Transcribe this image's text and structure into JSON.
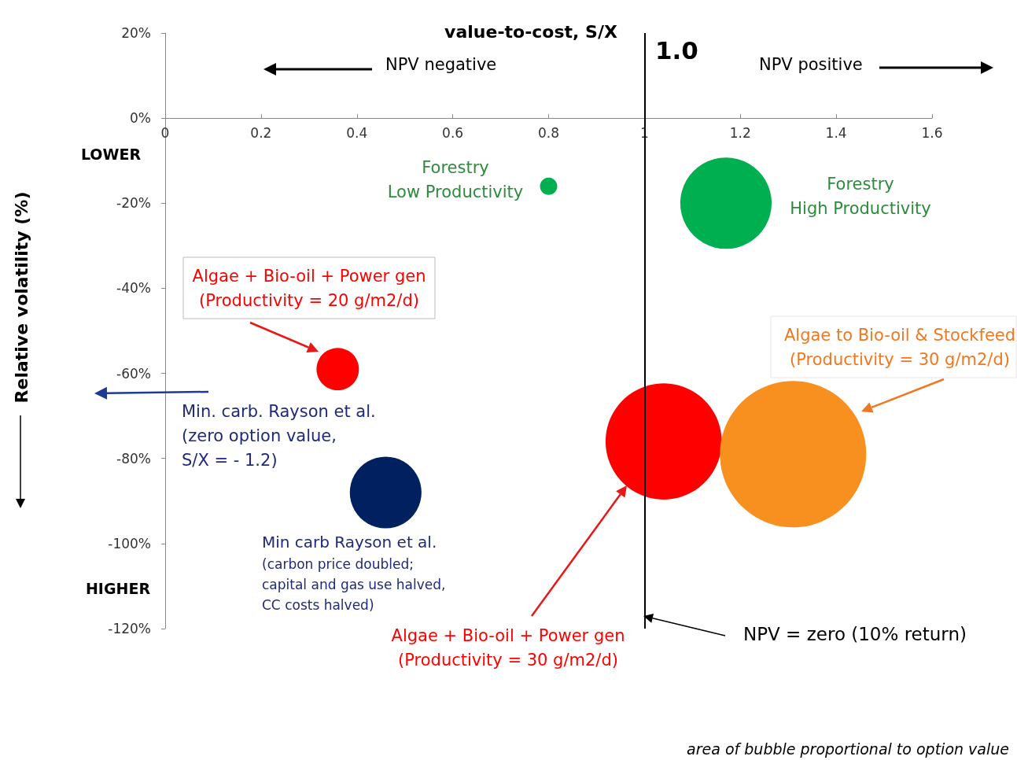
{
  "chart_data": {
    "type": "bubble",
    "xlabel": "value-to-cost, S/X",
    "ylabel": "Relative volatility (%)",
    "x": [
      0.8,
      1.17,
      0.36,
      0.46,
      1.04,
      1.31
    ],
    "values": [
      -16,
      -20,
      -59,
      -88,
      -76,
      -79
    ],
    "sizes": [
      0.014,
      0.39,
      0.084,
      0.24,
      0.63,
      1
    ],
    "colors": [
      "#00b050",
      "#00b050",
      "#ff0000",
      "#002060",
      "#ff0000",
      "#f7901e"
    ],
    "xlim": [
      0,
      1.6
    ],
    "xticks": [
      0,
      0.2,
      0.4,
      0.6,
      0.8,
      1,
      1.2,
      1.4,
      1.6
    ],
    "ylim": [
      -120,
      20
    ],
    "yticks": [
      {
        "value": 20,
        "label": "20%"
      },
      {
        "value": 0,
        "label": "0%"
      },
      {
        "value": -20,
        "label": "-20%"
      },
      {
        "value": -40,
        "label": "-40%"
      },
      {
        "value": -60,
        "label": "-60%"
      },
      {
        "value": -80,
        "label": "-80%"
      },
      {
        "value": -100,
        "label": "-100%"
      },
      {
        "value": -120,
        "label": "-120%"
      }
    ],
    "ref_lines": [
      {
        "axis": "x",
        "value": 1,
        "color": "#000000"
      }
    ],
    "annotations": [
      "NPV negative",
      "NPV positive",
      "1.0",
      "LOWER",
      "HIGHER",
      "Forestry\nLow Productivity",
      "Forestry\nHigh Productivity",
      "Algae + Bio-oil + Power gen\n(Productivity = 20 g/m2/d)",
      "Algae to Bio-oil & Stockfeed\n(Productivity = 30 g/m2/d)",
      "Min. carb. Rayson et al.\n(zero option value,\nS/X = - 1.2)",
      "Min carb Rayson et al.",
      "(carbon price doubled;\ncapital and gas use halved,\nCC costs halved)",
      "Algae + Bio-oil + Power gen\n(Productivity = 30 g/m2/d)",
      "NPV = zero (10% return)",
      "area of bubble proportional to option value"
    ]
  }
}
